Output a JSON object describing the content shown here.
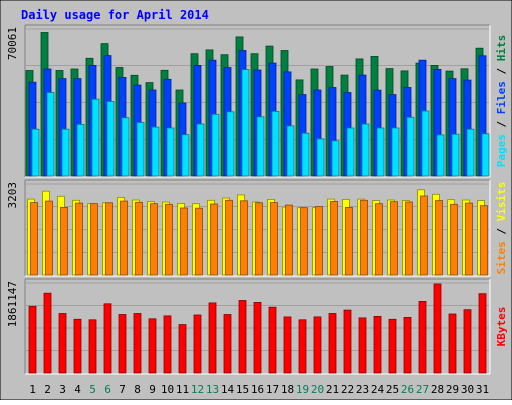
{
  "chart_data": {
    "type": "bar",
    "title": "Daily usage for April 2014",
    "categories": [
      "1",
      "2",
      "3",
      "4",
      "5",
      "6",
      "7",
      "8",
      "9",
      "10",
      "11",
      "12",
      "13",
      "14",
      "15",
      "16",
      "17",
      "18",
      "19",
      "20",
      "21",
      "22",
      "23",
      "24",
      "25",
      "26",
      "27",
      "28",
      "29",
      "30",
      "31"
    ],
    "weekend_days": [
      "5",
      "6",
      "12",
      "13",
      "19",
      "20",
      "26",
      "27"
    ],
    "panels": [
      {
        "id": "hits-files-pages",
        "ymax": 70061,
        "ymax_label": "70061",
        "side_label": [
          "Pages",
          "Files",
          "Hits"
        ],
        "series": [
          {
            "name": "Hits",
            "color": "#008040",
            "values": [
              50300,
              68400,
              50300,
              51000,
              56100,
              63100,
              51700,
              48000,
              44500,
              50400,
              41000,
              58300,
              60100,
              57800,
              66300,
              58300,
              61900,
              59800,
              45800,
              51000,
              52200,
              48100,
              55800,
              57000,
              51200,
              50100,
              53800,
              52700,
              50000,
              51100,
              60900
            ]
          },
          {
            "name": "Files",
            "color": "#0040ff",
            "values": [
              44700,
              51000,
              46400,
              46400,
              52700,
              57400,
              47000,
              43300,
              41000,
              46100,
              34800,
              52700,
              55200,
              51700,
              59800,
              50500,
              53800,
              49600,
              38800,
              41000,
              42200,
              39800,
              48100,
              40900,
              38800,
              42200,
              55200,
              50800,
              46400,
              45700,
              57300
            ]
          },
          {
            "name": "Pages",
            "color": "#00e0ff",
            "values": [
              22300,
              39800,
              22300,
              24600,
              36600,
              35500,
              27800,
              25500,
              23300,
              22900,
              19700,
              24800,
              29400,
              30600,
              50700,
              28200,
              30800,
              23900,
              20400,
              17700,
              16800,
              22900,
              24800,
              22900,
              22900,
              28000,
              31000,
              19600,
              19900,
              22300,
              20100
            ]
          }
        ]
      },
      {
        "id": "visits-sites",
        "ymax": 3203,
        "ymax_label": "3203",
        "side_label": [
          "Sites",
          "Visits"
        ],
        "series": [
          {
            "name": "Visits",
            "color": "#ffff00",
            "values": [
              2670,
              2950,
              2770,
              2630,
              2510,
              2540,
              2730,
              2640,
              2580,
              2570,
              2520,
              2510,
              2630,
              2710,
              2820,
              2570,
              2660,
              2390,
              2370,
              2370,
              2670,
              2660,
              2670,
              2620,
              2640,
              2620,
              3000,
              2840,
              2650,
              2640,
              2620
            ]
          },
          {
            "name": "Sites",
            "color": "#ff8000",
            "values": [
              2550,
              2600,
              2380,
              2530,
              2510,
              2540,
              2600,
              2560,
              2510,
              2490,
              2360,
              2350,
              2500,
              2630,
              2610,
              2540,
              2550,
              2460,
              2370,
              2410,
              2590,
              2380,
              2630,
              2510,
              2580,
              2570,
              2780,
              2620,
              2490,
              2530,
              2440
            ]
          }
        ]
      },
      {
        "id": "kbytes",
        "ymax": 1861147,
        "ymax_label": "1861147",
        "side_label": [
          "KBytes"
        ],
        "series": [
          {
            "name": "KBytes",
            "color": "#ff0000",
            "values": [
              1380000,
              1650000,
              1230000,
              1110000,
              1100000,
              1430000,
              1210000,
              1230000,
              1120000,
              1180000,
              1000000,
              1200000,
              1450000,
              1210000,
              1500000,
              1460000,
              1360000,
              1160000,
              1100000,
              1160000,
              1230000,
              1300000,
              1140000,
              1170000,
              1110000,
              1150000,
              1480000,
              1840000,
              1220000,
              1310000,
              1640000
            ]
          }
        ]
      }
    ]
  }
}
